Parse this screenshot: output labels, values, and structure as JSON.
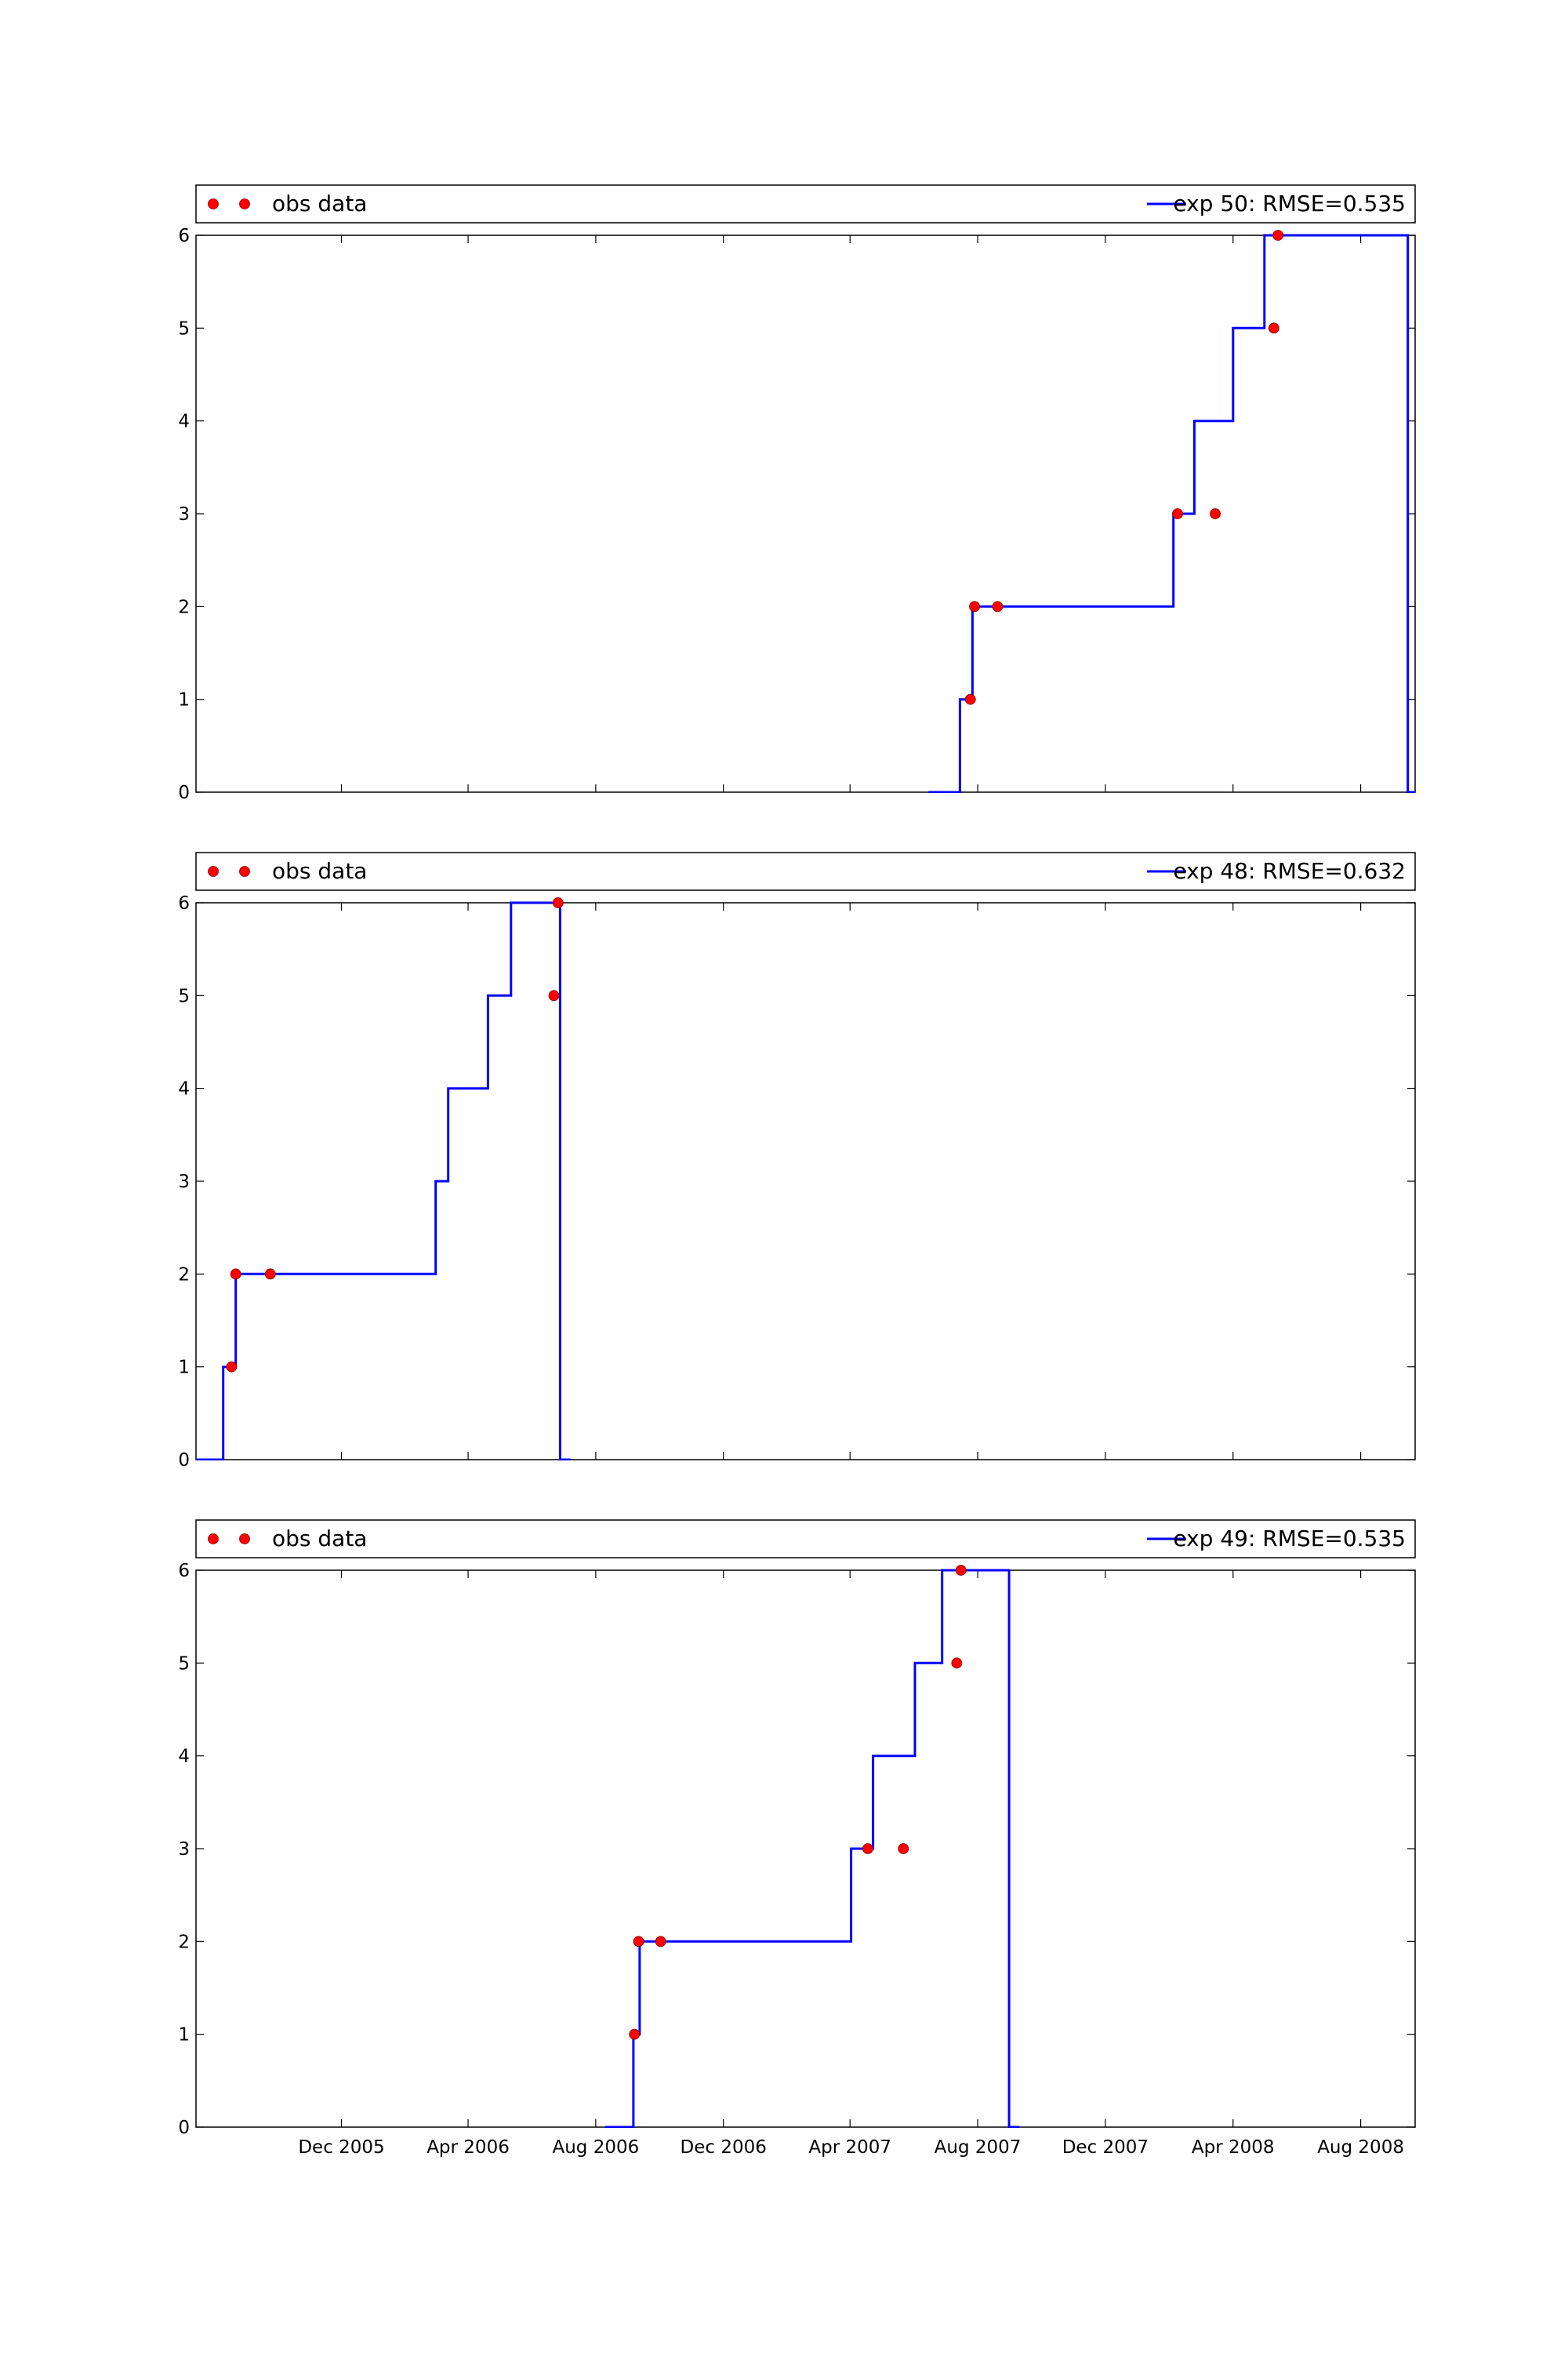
{
  "chart_data": [
    {
      "type": "line",
      "xlabel": "",
      "ylabel": "",
      "xlim": [
        "2005-07-15",
        "2008-09-22"
      ],
      "ylim": [
        0,
        6
      ],
      "yticks": [
        "0",
        "1",
        "2",
        "3",
        "4",
        "5",
        "6"
      ],
      "xticks": [
        {
          "date": "2005-12-01",
          "label": "Dec 2005"
        },
        {
          "date": "2006-04-01",
          "label": "Apr 2006"
        },
        {
          "date": "2006-08-01",
          "label": "Aug 2006"
        },
        {
          "date": "2006-12-01",
          "label": "Dec 2006"
        },
        {
          "date": "2007-04-01",
          "label": "Apr 2007"
        },
        {
          "date": "2007-08-01",
          "label": "Aug 2007"
        },
        {
          "date": "2007-12-01",
          "label": "Dec 2007"
        },
        {
          "date": "2008-04-01",
          "label": "Apr 2008"
        },
        {
          "date": "2008-08-01",
          "label": "Aug 2008"
        }
      ],
      "show_xtick_labels": false,
      "legend": {
        "obs_label": "obs data",
        "model_label": "exp 50: RMSE=0.535"
      },
      "series": [
        {
          "name": "exp 50: RMSE=0.535",
          "color": "#0000ff",
          "kind": "step-line",
          "points": [
            [
              "2007-06-15",
              0
            ],
            [
              "2007-07-15",
              0
            ],
            [
              "2007-07-15",
              1
            ],
            [
              "2007-07-27",
              1
            ],
            [
              "2007-07-27",
              2
            ],
            [
              "2008-02-04",
              2
            ],
            [
              "2008-02-04",
              3
            ],
            [
              "2008-02-24",
              3
            ],
            [
              "2008-02-24",
              4
            ],
            [
              "2008-04-01",
              4
            ],
            [
              "2008-04-01",
              5
            ],
            [
              "2008-05-01",
              5
            ],
            [
              "2008-05-01",
              6
            ],
            [
              "2008-09-15",
              6
            ],
            [
              "2008-09-15",
              0
            ],
            [
              "2008-09-22",
              0
            ]
          ]
        },
        {
          "name": "obs data",
          "color": "#ff0000",
          "kind": "scatter",
          "points": [
            [
              "2007-07-25",
              1
            ],
            [
              "2007-07-29",
              2
            ],
            [
              "2007-08-20",
              2
            ],
            [
              "2008-02-08",
              3
            ],
            [
              "2008-03-15",
              3
            ],
            [
              "2008-05-10",
              5
            ],
            [
              "2008-05-14",
              6
            ]
          ]
        }
      ]
    },
    {
      "type": "line",
      "xlabel": "",
      "ylabel": "",
      "xlim": [
        "2005-07-15",
        "2008-09-22"
      ],
      "ylim": [
        0,
        6
      ],
      "yticks": [
        "0",
        "1",
        "2",
        "3",
        "4",
        "5",
        "6"
      ],
      "xticks": [
        {
          "date": "2005-12-01",
          "label": "Dec 2005"
        },
        {
          "date": "2006-04-01",
          "label": "Apr 2006"
        },
        {
          "date": "2006-08-01",
          "label": "Aug 2006"
        },
        {
          "date": "2006-12-01",
          "label": "Dec 2006"
        },
        {
          "date": "2007-04-01",
          "label": "Apr 2007"
        },
        {
          "date": "2007-08-01",
          "label": "Aug 2007"
        },
        {
          "date": "2007-12-01",
          "label": "Dec 2007"
        },
        {
          "date": "2008-04-01",
          "label": "Apr 2008"
        },
        {
          "date": "2008-08-01",
          "label": "Aug 2008"
        }
      ],
      "show_xtick_labels": false,
      "legend": {
        "obs_label": "obs data",
        "model_label": "exp 48: RMSE=0.632"
      },
      "series": [
        {
          "name": "exp 48: RMSE=0.632",
          "color": "#0000ff",
          "kind": "step-line",
          "points": [
            [
              "2005-07-15",
              0
            ],
            [
              "2005-08-10",
              0
            ],
            [
              "2005-08-10",
              1
            ],
            [
              "2005-08-22",
              1
            ],
            [
              "2005-08-22",
              2
            ],
            [
              "2006-03-01",
              2
            ],
            [
              "2006-03-01",
              3
            ],
            [
              "2006-03-13",
              3
            ],
            [
              "2006-03-13",
              4
            ],
            [
              "2006-04-20",
              4
            ],
            [
              "2006-04-20",
              5
            ],
            [
              "2006-05-12",
              5
            ],
            [
              "2006-05-12",
              6
            ],
            [
              "2006-06-28",
              6
            ],
            [
              "2006-06-28",
              0
            ],
            [
              "2006-07-08",
              0
            ]
          ]
        },
        {
          "name": "obs data",
          "color": "#ff0000",
          "kind": "scatter",
          "points": [
            [
              "2005-08-18",
              1
            ],
            [
              "2005-08-22",
              2
            ],
            [
              "2005-09-24",
              2
            ],
            [
              "2006-06-22",
              5
            ],
            [
              "2006-06-26",
              6
            ]
          ]
        }
      ]
    },
    {
      "type": "line",
      "xlabel": "",
      "ylabel": "",
      "xlim": [
        "2005-07-15",
        "2008-09-22"
      ],
      "ylim": [
        0,
        6
      ],
      "yticks": [
        "0",
        "1",
        "2",
        "3",
        "4",
        "5",
        "6"
      ],
      "xticks": [
        {
          "date": "2005-12-01",
          "label": "Dec 2005"
        },
        {
          "date": "2006-04-01",
          "label": "Apr 2006"
        },
        {
          "date": "2006-08-01",
          "label": "Aug 2006"
        },
        {
          "date": "2006-12-01",
          "label": "Dec 2006"
        },
        {
          "date": "2007-04-01",
          "label": "Apr 2007"
        },
        {
          "date": "2007-08-01",
          "label": "Aug 2007"
        },
        {
          "date": "2007-12-01",
          "label": "Dec 2007"
        },
        {
          "date": "2008-04-01",
          "label": "Apr 2008"
        },
        {
          "date": "2008-08-01",
          "label": "Aug 2008"
        }
      ],
      "show_xtick_labels": true,
      "legend": {
        "obs_label": "obs data",
        "model_label": "exp 49: RMSE=0.535"
      },
      "series": [
        {
          "name": "exp 49: RMSE=0.535",
          "color": "#0000ff",
          "kind": "step-line",
          "points": [
            [
              "2006-08-10",
              0
            ],
            [
              "2006-09-06",
              0
            ],
            [
              "2006-09-06",
              1
            ],
            [
              "2006-09-12",
              1
            ],
            [
              "2006-09-12",
              2
            ],
            [
              "2007-04-02",
              2
            ],
            [
              "2007-04-02",
              3
            ],
            [
              "2007-04-23",
              3
            ],
            [
              "2007-04-23",
              4
            ],
            [
              "2007-06-02",
              4
            ],
            [
              "2007-06-02",
              5
            ],
            [
              "2007-06-28",
              5
            ],
            [
              "2007-06-28",
              6
            ],
            [
              "2007-08-31",
              6
            ],
            [
              "2007-08-31",
              0
            ],
            [
              "2007-09-10",
              0
            ]
          ]
        },
        {
          "name": "obs data",
          "color": "#ff0000",
          "kind": "scatter",
          "points": [
            [
              "2006-09-07",
              1
            ],
            [
              "2006-09-11",
              2
            ],
            [
              "2006-10-02",
              2
            ],
            [
              "2007-04-18",
              3
            ],
            [
              "2007-05-22",
              3
            ],
            [
              "2007-07-12",
              5
            ],
            [
              "2007-07-16",
              6
            ]
          ]
        }
      ]
    }
  ]
}
